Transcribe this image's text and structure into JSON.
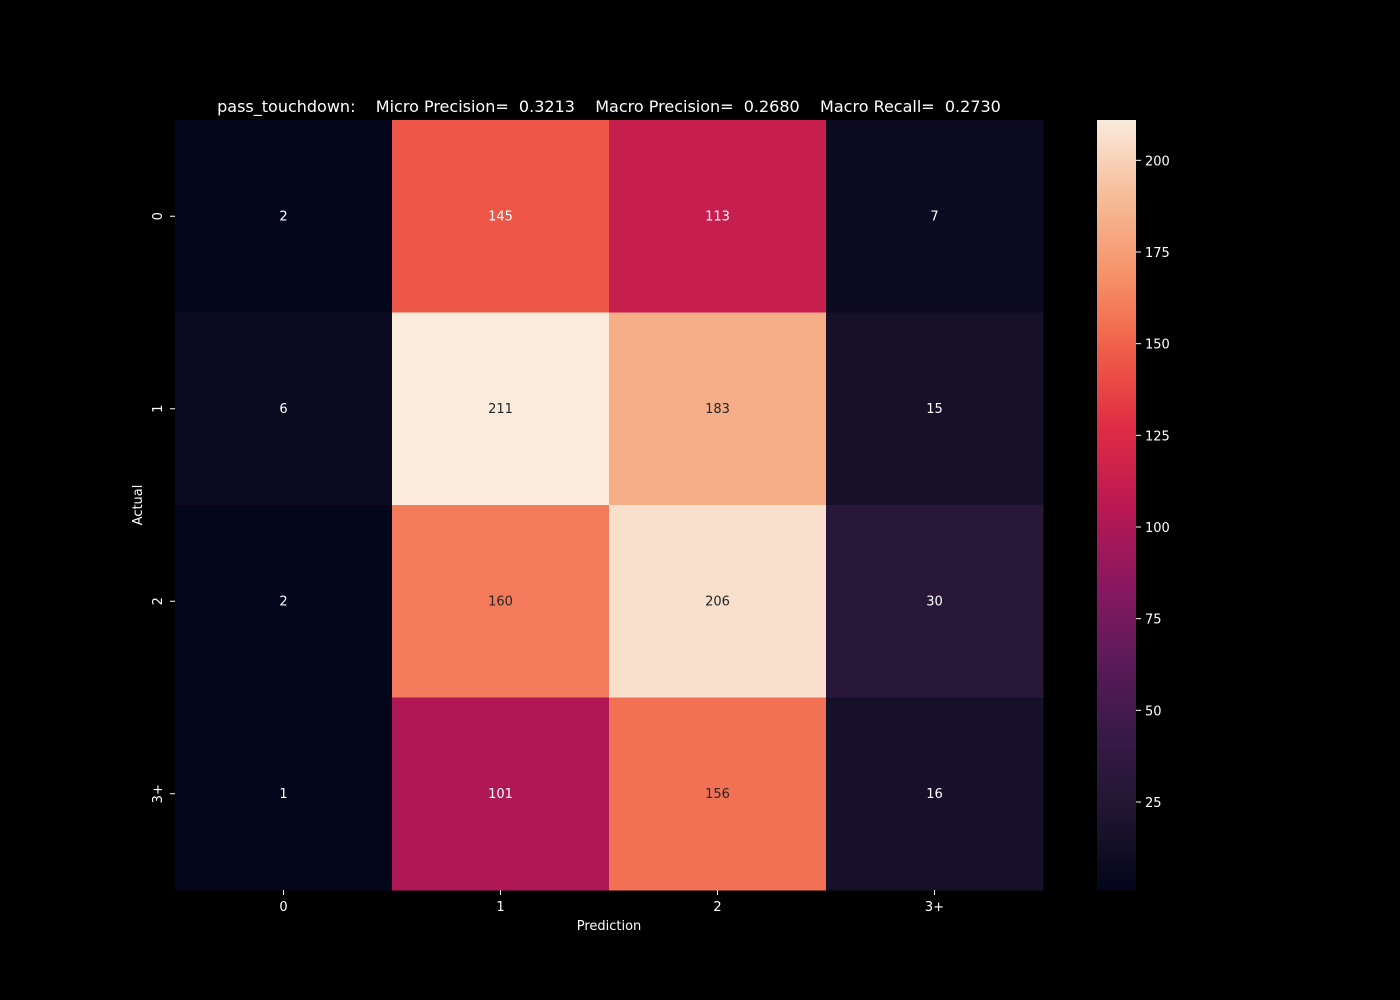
{
  "chart_data": {
    "type": "heatmap",
    "title": "pass_touchdown:    Micro Precision=  0.3213    Macro Precision=  0.2680    Macro Recall=  0.2730",
    "xlabel": "Prediction",
    "ylabel": "Actual",
    "x_categories": [
      "0",
      "1",
      "2",
      "3+"
    ],
    "y_categories": [
      "0",
      "1",
      "2",
      "3+"
    ],
    "values": [
      [
        2,
        145,
        113,
        7
      ],
      [
        6,
        211,
        183,
        15
      ],
      [
        2,
        160,
        206,
        30
      ],
      [
        1,
        101,
        156,
        16
      ]
    ],
    "colorbar": {
      "colormap": "rocket",
      "min": 1,
      "max": 211,
      "ticks": [
        25,
        50,
        75,
        100,
        125,
        150,
        175,
        200
      ]
    },
    "background": "#000000"
  }
}
